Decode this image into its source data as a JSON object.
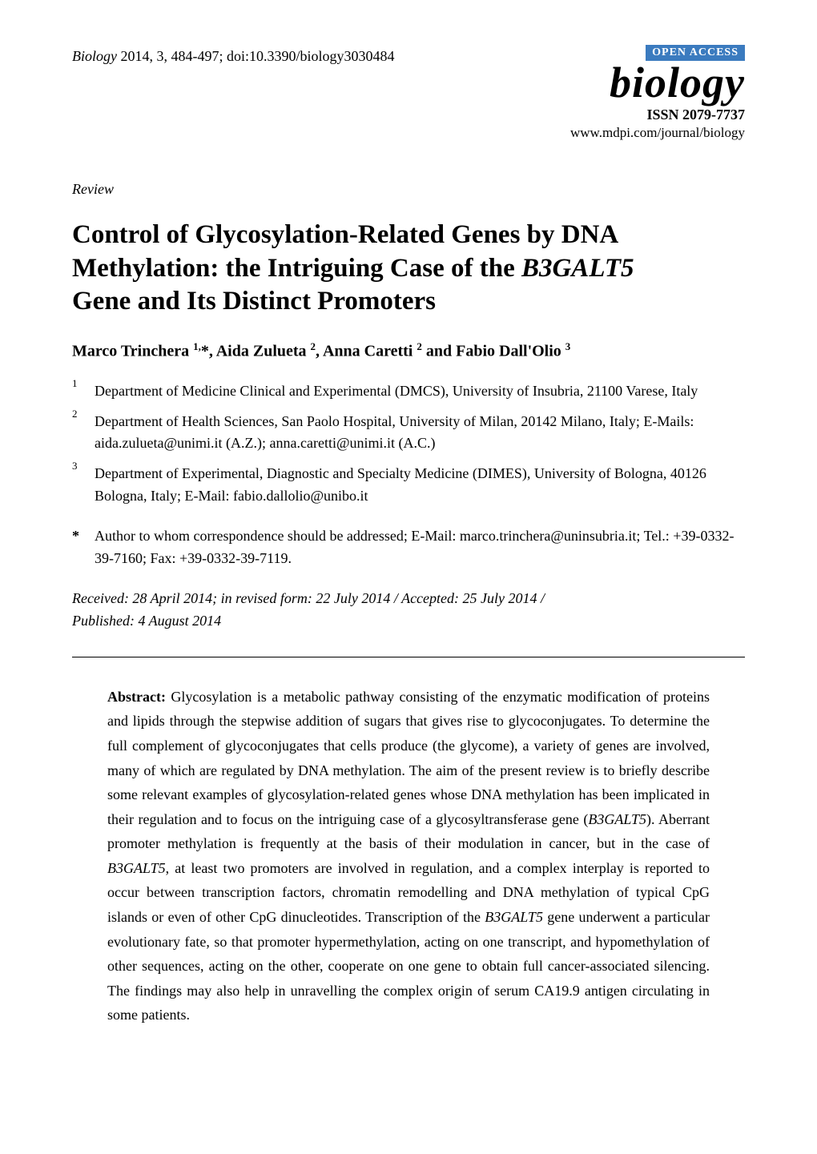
{
  "colors": {
    "text": "#000000",
    "background": "#ffffff",
    "open_access_bg": "#3b7bbf",
    "open_access_fg": "#ffffff",
    "logo": "#000000"
  },
  "fonts": {
    "body_family": "Times New Roman",
    "body_size_pt": 13,
    "title_size_pt": 24,
    "logo_size_pt": 40
  },
  "header": {
    "journal_ref": "Biology",
    "year_vol_pages": "2014, 3, 484-497; doi:10.3390/biology3030484",
    "open_access": "OPEN ACCESS",
    "logo_text": "biology",
    "issn": "ISSN 2079-7737",
    "url": "www.mdpi.com/journal/biology"
  },
  "kicker": "Review",
  "title": {
    "l1": "Control of Glycosylation-Related Genes by DNA",
    "l2a": "Methylation: the Intriguing Case of the ",
    "l2_gene": "B3GALT5",
    "l3": "Gene and Its Distinct Promoters"
  },
  "authors": {
    "a1_name": "Marco Trinchera ",
    "a1_sup": "1,",
    "a1_star": "*",
    "sep1": ", ",
    "a2_name": "Aida Zulueta ",
    "a2_sup": "2",
    "sep2": ", ",
    "a3_name": "Anna Caretti ",
    "a3_sup": "2",
    "and": " and ",
    "a4_name": "Fabio Dall'Olio ",
    "a4_sup": "3"
  },
  "affiliations": [
    {
      "marker": "1",
      "text": "Department of Medicine Clinical and Experimental (DMCS), University of Insubria, 21100 Varese, Italy"
    },
    {
      "marker": "2",
      "text": "Department of Health Sciences, San Paolo Hospital, University of Milan, 20142 Milano, Italy; E-Mails: aida.zulueta@unimi.it (A.Z.); anna.caretti@unimi.it (A.C.)"
    },
    {
      "marker": "3",
      "text": "Department of Experimental, Diagnostic and Specialty Medicine (DIMES), University of Bologna, 40126 Bologna, Italy; E-Mail: fabio.dallolio@unibo.it"
    }
  ],
  "correspondence": {
    "marker": "*",
    "text": "Author to whom correspondence should be addressed; E-Mail: marco.trinchera@uninsubria.it; Tel.: +39-0332-39-7160; Fax: +39-0332-39-7119."
  },
  "dates": {
    "l1": "Received: 28 April 2014; in revised form: 22 July 2014 / Accepted: 25 July 2014 /",
    "l2": "Published: 4 August 2014"
  },
  "abstract": {
    "lead": "Abstract:",
    "p1a": " Glycosylation is a metabolic pathway consisting of the enzymatic modification of proteins and lipids through the stepwise addition of sugars that gives rise to glycoconjugates. To determine the full complement of glycoconjugates that cells produce (the glycome), a variety of genes are involved, many of which are regulated by DNA methylation. The aim of the present review is to briefly describe some relevant examples of glycosylation-related genes whose DNA methylation has been implicated in their regulation and to focus on the intriguing case of a glycosyltransferase gene (",
    "gene1": "B3GALT5",
    "p1b": "). Aberrant promoter methylation is frequently at the basis of their modulation in cancer, but in the case of ",
    "gene2": "B3GALT5",
    "p1c": ", at least two promoters are involved in regulation, and a complex interplay is reported to occur between transcription factors, chromatin remodelling and DNA methylation of typical CpG islands or even of other CpG dinucleotides. Transcription of the ",
    "gene3": "B3GALT5",
    "p1d": " gene underwent a particular evolutionary fate, so that promoter hypermethylation, acting on one transcript, and hypomethylation of other sequences, acting on the other, cooperate on one gene to obtain full cancer-associated silencing. The findings may also help in unravelling the complex origin of serum CA19.9 antigen circulating in some patients."
  }
}
